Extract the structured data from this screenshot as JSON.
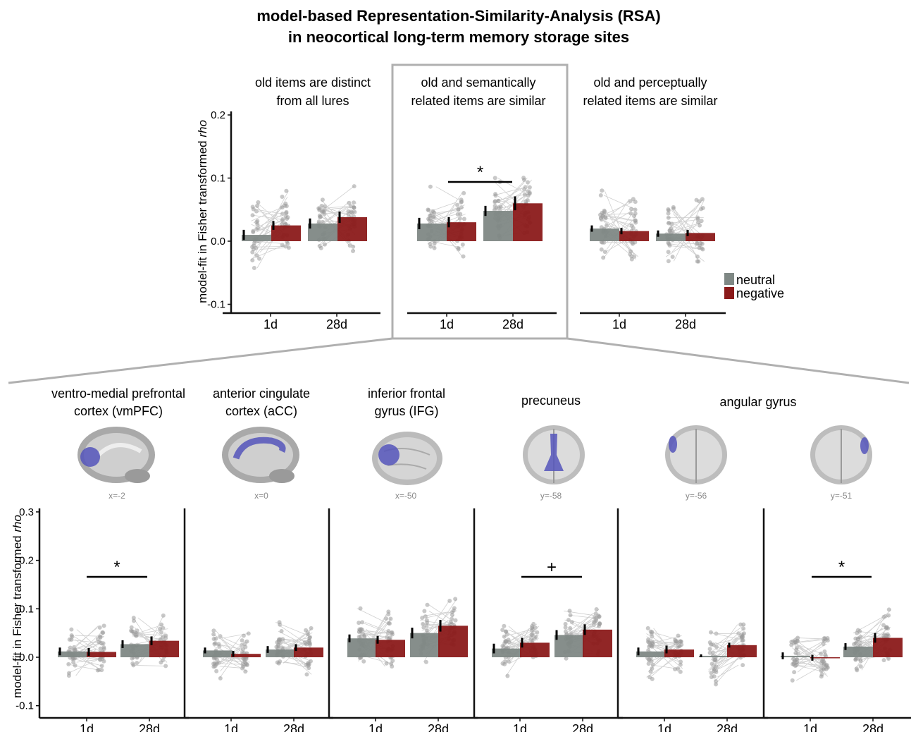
{
  "figure": {
    "title_line1": "model-based Representation-Similarity-Analysis (RSA)",
    "title_line2": "in neocortical long-term memory storage sites",
    "ylabel_prefix": "model-fit in Fisher transformed ",
    "ylabel_italic": "rho",
    "legend": [
      {
        "label": "neutral",
        "color": "#7f8885"
      },
      {
        "label": "negative",
        "color": "#8b1a1a"
      }
    ]
  },
  "colors": {
    "neutral": "#7f8885",
    "negative": "#8b1a1a",
    "dots": "#9a9a9a",
    "highlight_frame": "#b0b0b0"
  },
  "brain_icons": [
    "medial-brain-vmpfc",
    "medial-brain-acc",
    "lateral-brain-ifg",
    "coronal-brain-precuneus",
    "coronal-brain-angular-left",
    "coronal-brain-angular-right"
  ],
  "chart_data": [
    {
      "type": "bar",
      "title": [
        "old items are distinct",
        "from all lures"
      ],
      "categories": [
        "1d",
        "28d"
      ],
      "ylim": [
        -0.1,
        0.2
      ],
      "yticks": [
        -0.1,
        0.0,
        0.1,
        0.2
      ],
      "series": [
        {
          "name": "neutral",
          "values": [
            0.01,
            0.028
          ]
        },
        {
          "name": "negative",
          "values": [
            0.025,
            0.038
          ]
        }
      ],
      "errors": [
        [
          0.008,
          0.008
        ],
        [
          0.007,
          0.009
        ]
      ],
      "annotation": ""
    },
    {
      "type": "bar",
      "title": [
        "old and semantically",
        "related items are similar"
      ],
      "categories": [
        "1d",
        "28d"
      ],
      "ylim": [
        -0.1,
        0.2
      ],
      "yticks": [
        -0.1,
        0.0,
        0.1,
        0.2
      ],
      "series": [
        {
          "name": "neutral",
          "values": [
            0.028,
            0.048
          ]
        },
        {
          "name": "negative",
          "values": [
            0.03,
            0.06
          ]
        }
      ],
      "errors": [
        [
          0.009,
          0.008
        ],
        [
          0.008,
          0.011
        ]
      ],
      "annotation": "*"
    },
    {
      "type": "bar",
      "title": [
        "old and perceptually",
        "related items are similar"
      ],
      "categories": [
        "1d",
        "28d"
      ],
      "ylim": [
        -0.1,
        0.2
      ],
      "yticks": [
        -0.1,
        0.0,
        0.1,
        0.2
      ],
      "series": [
        {
          "name": "neutral",
          "values": [
            0.02,
            0.012
          ]
        },
        {
          "name": "negative",
          "values": [
            0.016,
            0.013
          ]
        }
      ],
      "errors": [
        [
          0.005,
          0.005
        ],
        [
          0.005,
          0.005
        ]
      ],
      "annotation": ""
    },
    {
      "type": "bar",
      "title": [
        "ventro-medial prefrontal",
        "cortex (vmPFC)"
      ],
      "coordinate": "x=-2",
      "categories": [
        "1d",
        "28d"
      ],
      "ylim": [
        -0.1,
        0.3
      ],
      "yticks": [
        -0.1,
        0.0,
        0.1,
        0.2,
        0.3
      ],
      "series": [
        {
          "name": "neutral",
          "values": [
            0.012,
            0.027
          ]
        },
        {
          "name": "negative",
          "values": [
            0.011,
            0.034
          ]
        }
      ],
      "errors": [
        [
          0.008,
          0.008
        ],
        [
          0.008,
          0.009
        ]
      ],
      "annotation": "*"
    },
    {
      "type": "bar",
      "title": [
        "anterior cingulate",
        "cortex (aCC)"
      ],
      "coordinate": "x=0",
      "categories": [
        "1d",
        "28d"
      ],
      "ylim": [
        -0.1,
        0.3
      ],
      "yticks": [
        -0.1,
        0.0,
        0.1,
        0.2,
        0.3
      ],
      "series": [
        {
          "name": "neutral",
          "values": [
            0.014,
            0.016
          ]
        },
        {
          "name": "negative",
          "values": [
            0.007,
            0.02
          ]
        }
      ],
      "errors": [
        [
          0.006,
          0.007
        ],
        [
          0.006,
          0.007
        ]
      ],
      "annotation": ""
    },
    {
      "type": "bar",
      "title": [
        "inferior frontal",
        "gyrus (IFG)"
      ],
      "coordinate": "x=-50",
      "categories": [
        "1d",
        "28d"
      ],
      "ylim": [
        -0.1,
        0.3
      ],
      "yticks": [
        -0.1,
        0.0,
        0.1,
        0.2,
        0.3
      ],
      "series": [
        {
          "name": "neutral",
          "values": [
            0.039,
            0.05
          ]
        },
        {
          "name": "negative",
          "values": [
            0.036,
            0.065
          ]
        }
      ],
      "errors": [
        [
          0.008,
          0.011
        ],
        [
          0.008,
          0.012
        ]
      ],
      "annotation": ""
    },
    {
      "type": "bar",
      "title": [
        "",
        "precuneus"
      ],
      "coordinate": "y=-58",
      "categories": [
        "1d",
        "28d"
      ],
      "ylim": [
        -0.1,
        0.3
      ],
      "yticks": [
        -0.1,
        0.0,
        0.1,
        0.2,
        0.3
      ],
      "series": [
        {
          "name": "neutral",
          "values": [
            0.018,
            0.046
          ]
        },
        {
          "name": "negative",
          "values": [
            0.03,
            0.057
          ]
        }
      ],
      "errors": [
        [
          0.01,
          0.01
        ],
        [
          0.01,
          0.011
        ]
      ],
      "annotation": "+"
    },
    {
      "type": "bar",
      "title": [
        "",
        ""
      ],
      "coordinate": "y=-56",
      "categories": [
        "1d",
        "28d"
      ],
      "ylim": [
        -0.1,
        0.3
      ],
      "yticks": [
        -0.1,
        0.0,
        0.1,
        0.2,
        0.3
      ],
      "series": [
        {
          "name": "neutral",
          "values": [
            0.012,
            0.003
          ]
        },
        {
          "name": "negative",
          "values": [
            0.016,
            0.025
          ]
        }
      ],
      "errors": [
        [
          0.008,
          0.003
        ],
        [
          0.008,
          0.005
        ]
      ],
      "annotation": ""
    },
    {
      "type": "bar",
      "title": [
        "",
        ""
      ],
      "coordinate": "y=-51",
      "categories": [
        "1d",
        "28d"
      ],
      "ylim": [
        -0.1,
        0.3
      ],
      "yticks": [
        -0.1,
        0.0,
        0.1,
        0.2,
        0.3
      ],
      "series": [
        {
          "name": "neutral",
          "values": [
            0.003,
            0.022
          ]
        },
        {
          "name": "negative",
          "values": [
            -0.001,
            0.04
          ]
        }
      ],
      "errors": [
        [
          0.007,
          0.007
        ],
        [
          0.006,
          0.01
        ]
      ],
      "annotation": "*"
    }
  ],
  "shared_titles": {
    "angular_gyrus": "angular gyrus"
  }
}
